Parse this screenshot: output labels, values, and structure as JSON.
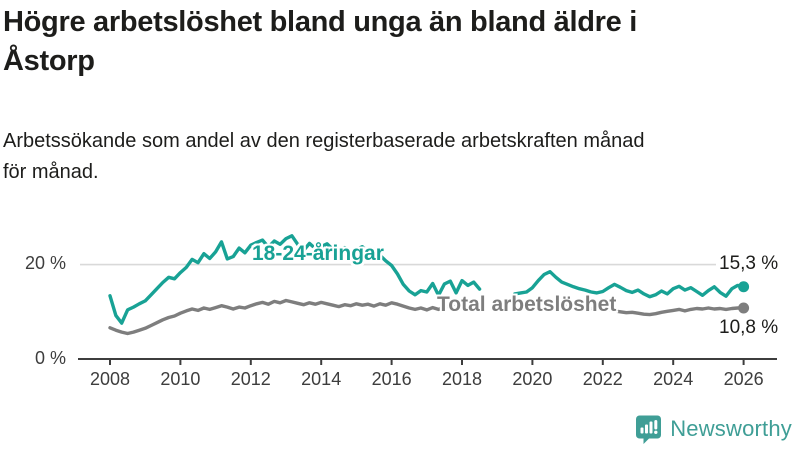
{
  "header": {
    "title_lines": [
      "Högre arbetslöshet bland unga än bland äldre i",
      "Åstorp"
    ],
    "subtitle_lines": [
      "Arbetssökande som andel av den registerbaserade arbetskraften månad",
      "för månad."
    ]
  },
  "chart_data": {
    "type": "line",
    "title": "Högre arbetslöshet bland unga än bland äldre i Åstorp",
    "subtitle": "Arbetssökande som andel av den registerbaserade arbetskraften månad för månad.",
    "y_unit": "%",
    "x_start": 2008,
    "x_step_years": 0.1666667,
    "x_axis": {
      "ticks": [
        "2008",
        "2010",
        "2012",
        "2014",
        "2016",
        "2018",
        "2020",
        "2022",
        "2024",
        "2026"
      ]
    },
    "y_axis": {
      "ticks": [
        {
          "value": 20,
          "label": "20 %"
        },
        {
          "value": 0,
          "label": "0 %"
        }
      ],
      "range": [
        0,
        28
      ]
    },
    "grid": "horizontal-only",
    "colors": {
      "axis": "#3d3d3d",
      "gridline": "#d9d9d9"
    },
    "series": [
      {
        "name": "18-24-åringar",
        "color": "#18a295",
        "end_label": "15,3 %",
        "end_value": 15.3,
        "values": [
          13.4,
          9.2,
          7.6,
          10.4,
          11.0,
          11.7,
          12.3,
          13.6,
          14.9,
          16.2,
          17.3,
          17.0,
          18.3,
          19.4,
          21.1,
          20.4,
          22.3,
          21.3,
          22.7,
          24.8,
          21.2,
          21.7,
          23.5,
          22.5,
          24.1,
          24.7,
          25.2,
          23.7,
          25.0,
          24.3,
          25.5,
          26.1,
          24.3,
          23.0,
          24.5,
          23.4,
          23.8,
          24.4,
          23.2,
          22.6,
          23.6,
          23.0,
          23.2,
          23.8,
          22.8,
          23.3,
          22.0,
          20.8,
          19.8,
          18.0,
          15.8,
          14.4,
          13.6,
          14.5,
          14.2,
          16.0,
          13.5,
          15.9,
          16.5,
          14.0,
          16.6,
          15.6,
          16.3,
          14.8,
          null,
          null,
          null,
          null,
          null,
          13.8,
          14.0,
          14.2,
          15.1,
          16.6,
          17.9,
          18.5,
          17.3,
          16.3,
          15.8,
          15.3,
          14.9,
          14.6,
          14.2,
          14.0,
          14.3,
          15.1,
          15.8,
          15.2,
          14.5,
          14.1,
          14.6,
          13.8,
          13.2,
          13.6,
          14.4,
          13.8,
          14.9,
          15.4,
          14.6,
          15.1,
          14.3,
          13.5,
          14.5,
          15.3,
          14.1,
          13.3,
          14.9,
          15.6,
          15.3
        ]
      },
      {
        "name": "Total arbetslöshet",
        "color": "#7e7e7e",
        "end_label": "10,8 %",
        "end_value": 10.8,
        "values": [
          6.6,
          6.1,
          5.7,
          5.4,
          5.7,
          6.1,
          6.5,
          7.1,
          7.7,
          8.3,
          8.8,
          9.1,
          9.7,
          10.2,
          10.6,
          10.3,
          10.8,
          10.5,
          10.9,
          11.3,
          11.0,
          10.6,
          11.0,
          10.8,
          11.3,
          11.7,
          12.0,
          11.6,
          12.2,
          11.9,
          12.4,
          12.1,
          11.8,
          11.5,
          11.9,
          11.6,
          12.0,
          11.7,
          11.4,
          11.1,
          11.5,
          11.3,
          11.7,
          11.4,
          11.6,
          11.2,
          11.7,
          11.4,
          11.9,
          11.6,
          11.2,
          10.8,
          10.5,
          10.8,
          10.4,
          10.9,
          10.5,
          11.0,
          11.3,
          11.0,
          11.2,
          10.9,
          11.1,
          10.7,
          null,
          null,
          null,
          null,
          null,
          10.4,
          10.6,
          10.5,
          10.8,
          11.3,
          11.9,
          12.1,
          11.8,
          11.5,
          11.7,
          11.4,
          11.1,
          10.9,
          10.7,
          10.5,
          10.6,
          10.4,
          10.2,
          10.0,
          9.8,
          9.9,
          9.7,
          9.5,
          9.4,
          9.6,
          9.9,
          10.1,
          10.3,
          10.5,
          10.2,
          10.5,
          10.7,
          10.6,
          10.8,
          10.6,
          10.7,
          10.5,
          10.7,
          10.8,
          10.8
        ]
      }
    ]
  },
  "footer": {
    "brand": "Newsworthy",
    "brand_color": "#3f9e96"
  }
}
